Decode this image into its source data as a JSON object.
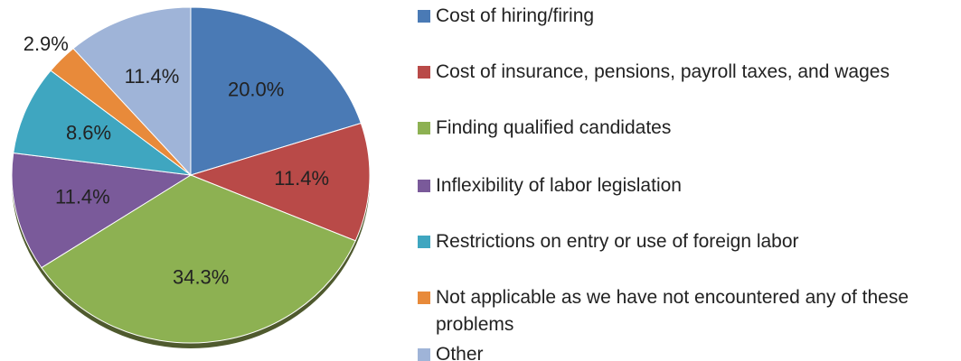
{
  "chart_data": {
    "type": "pie",
    "categories": [
      "Cost of hiring/firing",
      "Cost of insurance, pensions, payroll taxes, and wages",
      "Finding qualified candidates",
      "Inflexibility of labor legislation",
      "Restrictions on entry or use of foreign labor",
      "Not applicable as we have not encountered any of these problems",
      "Other"
    ],
    "values": [
      20.0,
      11.4,
      34.3,
      11.4,
      8.6,
      2.9,
      11.4
    ],
    "value_labels": [
      "20.0%",
      "11.4%",
      "34.3%",
      "11.4%",
      "8.6%",
      "2.9%",
      "11.4%"
    ],
    "colors": [
      "#4a7ab5",
      "#b94a48",
      "#8db152",
      "#7a5a9a",
      "#3fa6c0",
      "#e88a3a",
      "#9fb4d8"
    ],
    "legend": "right"
  }
}
